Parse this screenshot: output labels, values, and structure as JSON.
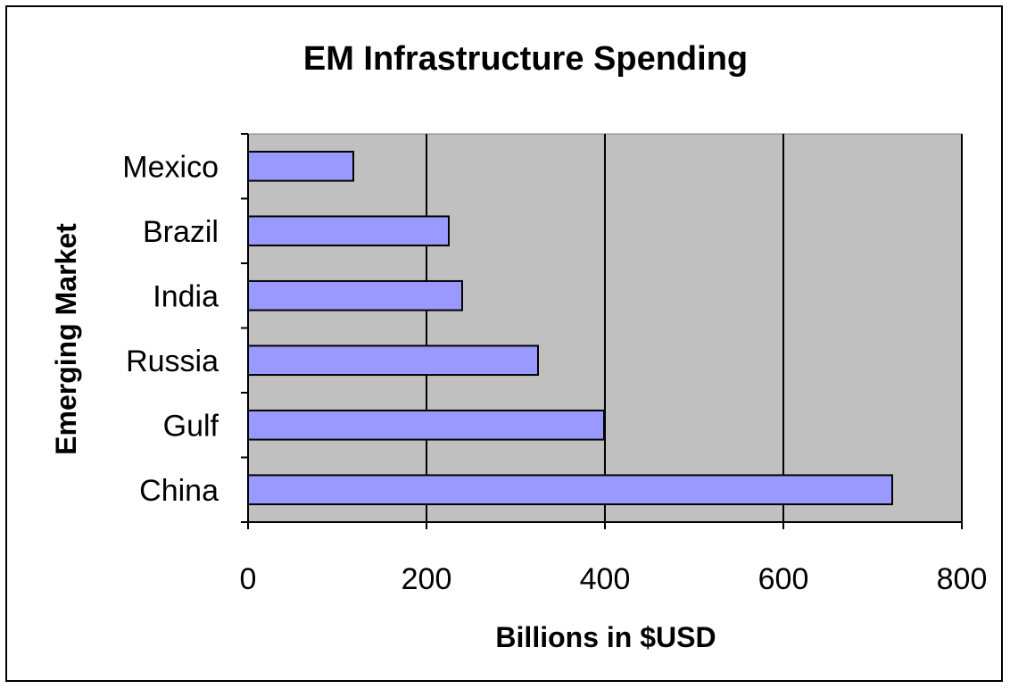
{
  "chart_data": {
    "type": "bar",
    "orientation": "horizontal",
    "title": "EM Infrastructure Spending",
    "xlabel": "Billions in $USD",
    "ylabel": "Emerging Market",
    "categories": [
      "Mexico",
      "Brazil",
      "India",
      "Russia",
      "Gulf",
      "China"
    ],
    "values": [
      118,
      225,
      240,
      325,
      399,
      722
    ],
    "xlim": [
      0,
      800
    ],
    "xticks": [
      "0",
      "200",
      "400",
      "600",
      "800"
    ],
    "grid": "vertical",
    "legend": "none",
    "colors": {
      "bar_fill": "#9999FF",
      "bar_stroke": "#000000",
      "plot_background": "#C0C0C0",
      "gridline": "#000000"
    }
  }
}
